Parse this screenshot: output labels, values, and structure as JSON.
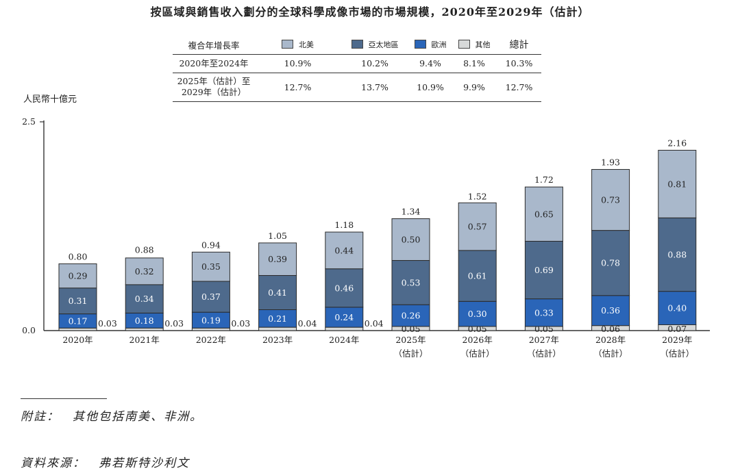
{
  "title": "按區域與銷售收入劃分的全球科學成像市場的市場規模，2020年至2029年（估計）",
  "cagr_table": {
    "header": {
      "row_label": "複合年增長率",
      "columns": [
        {
          "label": "北美",
          "color": "#a9b8cb"
        },
        {
          "label": "亞太地區",
          "color": "#4e6a8c"
        },
        {
          "label": "歐洲",
          "color": "#2a65b8"
        },
        {
          "label": "其他",
          "color": "#d7d9d9"
        }
      ],
      "total": "總計"
    },
    "rows": [
      {
        "label": "2020年至2024年",
        "values": [
          "10.9%",
          "10.2%",
          "9.4%",
          "8.1%",
          "10.3%"
        ]
      },
      {
        "label_line1": "2025年（估計）至",
        "label_line2": "2029年（估計）",
        "values": [
          "12.7%",
          "13.7%",
          "10.9%",
          "9.9%",
          "12.7%"
        ]
      }
    ]
  },
  "unit_label": "人民幣十億元",
  "chart_data": {
    "type": "bar",
    "stacked": true,
    "categories": [
      "2020年",
      "2021年",
      "2022年",
      "2023年",
      "2024年",
      "2025年",
      "2026年",
      "2027年",
      "2028年",
      "2029年"
    ],
    "category_sublabels": [
      "",
      "",
      "",
      "",
      "",
      "（估計）",
      "（估計）",
      "（估計）",
      "（估計）",
      "（估計）"
    ],
    "series": [
      {
        "name": "其他",
        "color": "#d7d9d9",
        "values": [
          0.03,
          0.03,
          0.03,
          0.04,
          0.04,
          0.05,
          0.05,
          0.05,
          0.06,
          0.07
        ]
      },
      {
        "name": "歐洲",
        "color": "#2a65b8",
        "values": [
          0.17,
          0.18,
          0.19,
          0.21,
          0.24,
          0.26,
          0.3,
          0.33,
          0.36,
          0.4
        ]
      },
      {
        "name": "亞太地區",
        "color": "#4e6a8c",
        "values": [
          0.31,
          0.34,
          0.37,
          0.41,
          0.46,
          0.53,
          0.61,
          0.69,
          0.78,
          0.88
        ]
      },
      {
        "name": "北美",
        "color": "#a9b8cb",
        "values": [
          0.29,
          0.32,
          0.35,
          0.39,
          0.44,
          0.5,
          0.57,
          0.65,
          0.73,
          0.81
        ]
      }
    ],
    "value_labels": {
      "其他": [
        "0.03",
        "0.03",
        "0.03",
        "0.04",
        "0.04",
        "0.05",
        "0.05",
        "0.05",
        "0.06",
        "0.07"
      ],
      "歐洲": [
        "0.17",
        "0.18",
        "0.19",
        "0.21",
        "0.24",
        "0.26",
        "0.30",
        "0.33",
        "0.36",
        "0.40"
      ],
      "亞太地區": [
        "0.31",
        "0.34",
        "0.37",
        "0.41",
        "0.46",
        "0.53",
        "0.61",
        "0.69",
        "0.78",
        "0.88"
      ],
      "北美": [
        "0.29",
        "0.32",
        "0.35",
        "0.39",
        "0.44",
        "0.50",
        "0.57",
        "0.65",
        "0.73",
        "0.81"
      ]
    },
    "totals": [
      0.8,
      0.88,
      0.94,
      1.05,
      1.18,
      1.34,
      1.52,
      1.72,
      1.93,
      2.16
    ],
    "total_labels": [
      "0.80",
      "0.88",
      "0.94",
      "1.05",
      "1.18",
      "1.34",
      "1.52",
      "1.72",
      "1.93",
      "2.16"
    ],
    "ylim": [
      0,
      2.5
    ],
    "ytick_labels": [
      "0.0",
      "2.5"
    ],
    "ylabel": "人民幣十億元"
  },
  "footnotes": {
    "note": "附註：　其他包括南美、非洲。",
    "source": "資料來源：　弗若斯特沙利文"
  }
}
